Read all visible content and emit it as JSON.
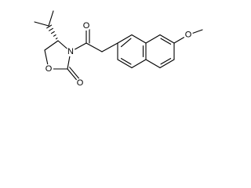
{
  "atoms": [
    "O",
    "N",
    "O",
    "O",
    "O"
  ]
}
